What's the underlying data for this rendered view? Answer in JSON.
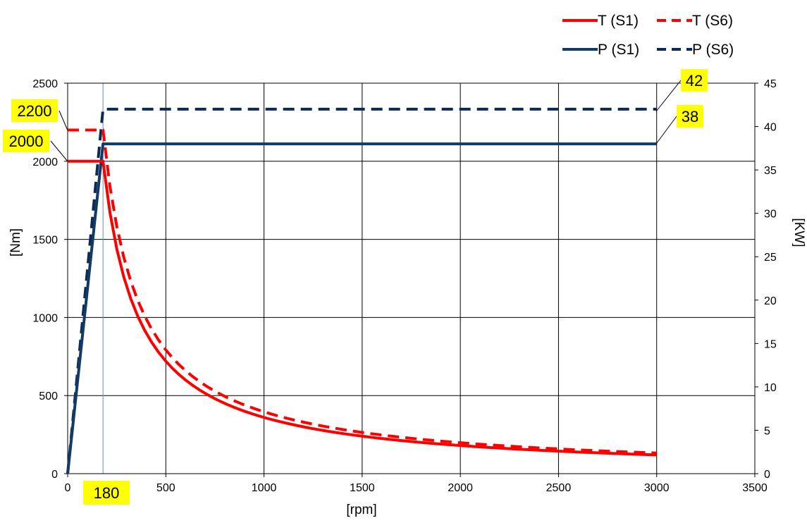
{
  "chart_data": {
    "type": "line",
    "xlabel": "[rpm]",
    "ylabel_left": "[Nm]",
    "ylabel_right": "[KW]",
    "xlim": [
      0,
      3500
    ],
    "ylim_left": [
      0,
      2500
    ],
    "ylim_right": [
      0,
      45
    ],
    "x_ticks": [
      0,
      500,
      1000,
      1500,
      2000,
      2500,
      3000,
      3500
    ],
    "y_left_ticks": [
      0,
      500,
      1000,
      1500,
      2000,
      2500
    ],
    "y_right_ticks": [
      0,
      5,
      10,
      15,
      20,
      25,
      30,
      35,
      40,
      45
    ],
    "grid": true,
    "legend_position": "top-right",
    "base_speed": 180,
    "series": [
      {
        "name": "T (S1)",
        "axis": "left",
        "color": "#ff0000",
        "dash": "solid",
        "model": "torque",
        "max_torque": 2000,
        "max_speed": 3000
      },
      {
        "name": "T (S6)",
        "axis": "left",
        "color": "#ff0000",
        "dash": "dashed",
        "model": "torque",
        "max_torque": 2200,
        "max_speed": 3000
      },
      {
        "name": "P (S1)",
        "axis": "right",
        "color": "#123a66",
        "dash": "solid",
        "model": "power",
        "max_power": 38,
        "max_speed": 3000
      },
      {
        "name": "P (S6)",
        "axis": "right",
        "color": "#0d2a55",
        "dash": "dashed",
        "model": "power",
        "max_power": 42,
        "max_speed": 3000
      }
    ],
    "annotations": [
      {
        "text": "2200",
        "axis": "left",
        "value": 2200
      },
      {
        "text": "2000",
        "axis": "left",
        "value": 2000
      },
      {
        "text": "42",
        "axis": "right",
        "value": 42
      },
      {
        "text": "38",
        "axis": "right",
        "value": 38
      },
      {
        "text": "180",
        "axis": "x",
        "value": 180
      }
    ],
    "callout_color": "#ffff00"
  }
}
